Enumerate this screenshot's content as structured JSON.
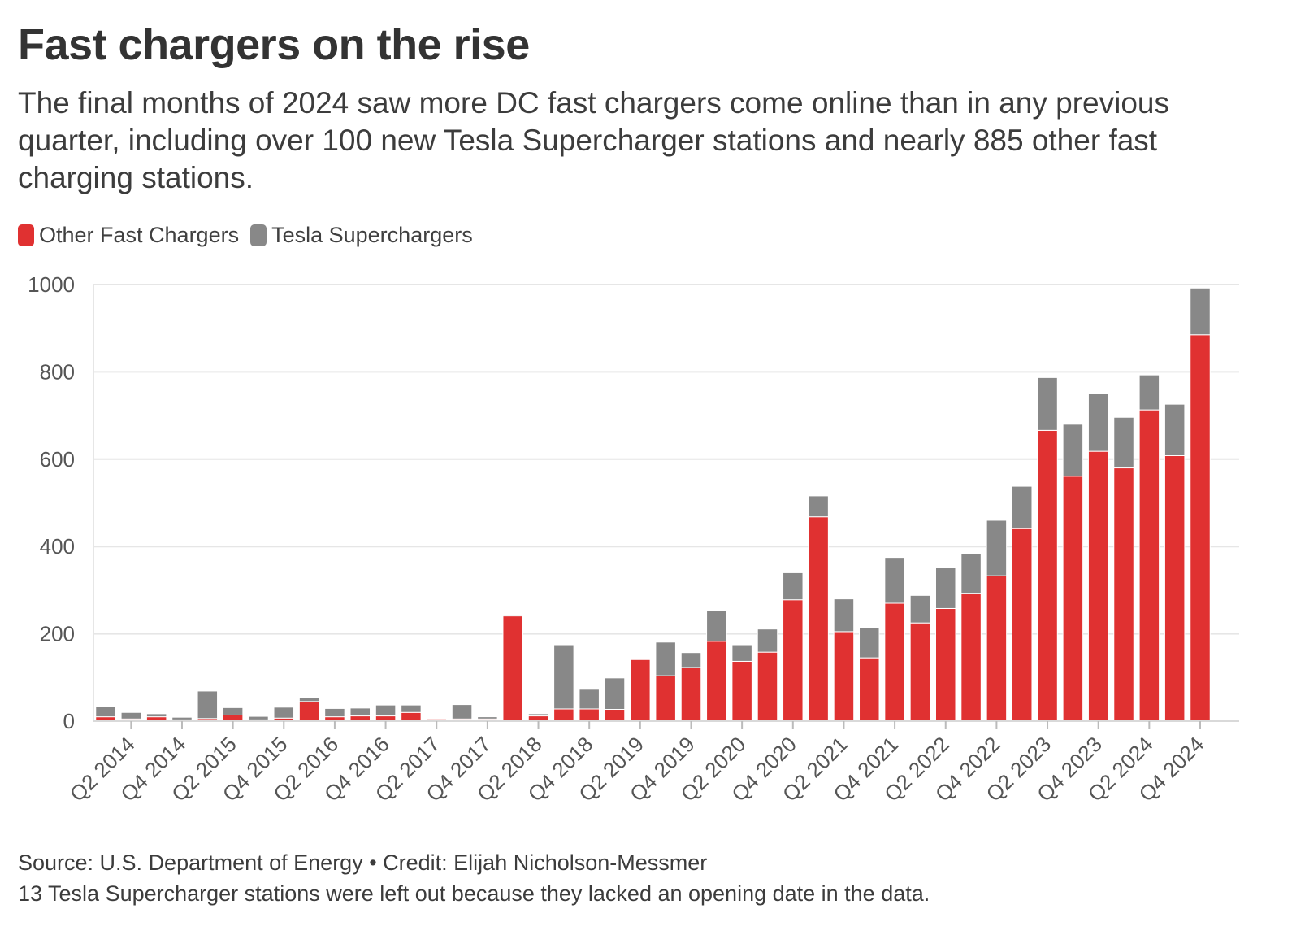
{
  "header": {
    "title": "Fast chargers on the rise",
    "subtitle": "The final months of 2024 saw more DC fast chargers come online than in any previous quarter, including over 100 new Tesla Supercharger stations and nearly 885 other fast charging stations."
  },
  "legend": {
    "items": [
      {
        "label": "Other Fast Chargers",
        "color": "#e03131"
      },
      {
        "label": "Tesla Superchargers",
        "color": "#888888"
      }
    ]
  },
  "footer": {
    "source": "Source: U.S. Department of Energy • Credit: Elijah Nicholson-Messmer",
    "note": "13 Tesla Supercharger stations were left out because they lacked an opening date in the data."
  },
  "chart_data": {
    "type": "bar",
    "stacked": true,
    "title": "Fast chargers on the rise",
    "xlabel": "",
    "ylabel": "",
    "ylim": [
      0,
      1000
    ],
    "yticks": [
      0,
      200,
      400,
      600,
      800,
      1000
    ],
    "grid": true,
    "legend_position": "top-left",
    "categories": [
      "Q1 2014",
      "Q2 2014",
      "Q3 2014",
      "Q4 2014",
      "Q1 2015",
      "Q2 2015",
      "Q3 2015",
      "Q4 2015",
      "Q1 2016",
      "Q2 2016",
      "Q3 2016",
      "Q4 2016",
      "Q1 2017",
      "Q2 2017",
      "Q3 2017",
      "Q4 2017",
      "Q1 2018",
      "Q2 2018",
      "Q3 2018",
      "Q4 2018",
      "Q1 2019",
      "Q2 2019",
      "Q3 2019",
      "Q4 2019",
      "Q1 2020",
      "Q2 2020",
      "Q3 2020",
      "Q4 2020",
      "Q1 2021",
      "Q2 2021",
      "Q3 2021",
      "Q4 2021",
      "Q1 2022",
      "Q2 2022",
      "Q3 2022",
      "Q4 2022",
      "Q1 2023",
      "Q2 2023",
      "Q3 2023",
      "Q4 2023",
      "Q1 2024",
      "Q2 2024",
      "Q3 2024",
      "Q4 2024"
    ],
    "xtick_labels": [
      "Q2 2014",
      "Q4 2014",
      "Q2 2015",
      "Q4 2015",
      "Q2 2016",
      "Q4 2016",
      "Q2 2017",
      "Q4 2017",
      "Q2 2018",
      "Q4 2018",
      "Q2 2019",
      "Q4 2019",
      "Q2 2020",
      "Q4 2020",
      "Q2 2021",
      "Q4 2021",
      "Q2 2022",
      "Q4 2022",
      "Q2 2023",
      "Q4 2023",
      "Q2 2024",
      "Q4 2024"
    ],
    "series": [
      {
        "name": "Other Fast Chargers",
        "color": "#e03131",
        "values": [
          10,
          5,
          10,
          3,
          6,
          14,
          3,
          7,
          45,
          10,
          12,
          12,
          20,
          5,
          5,
          5,
          241,
          12,
          28,
          28,
          27,
          141,
          104,
          123,
          183,
          137,
          158,
          278,
          468,
          205,
          145,
          270,
          225,
          258,
          293,
          333,
          441,
          666,
          561,
          618,
          580,
          713,
          608,
          885
        ]
      },
      {
        "name": "Tesla Superchargers",
        "color": "#888888",
        "values": [
          23,
          15,
          7,
          6,
          63,
          17,
          8,
          25,
          9,
          19,
          18,
          25,
          17,
          0,
          33,
          5,
          3,
          5,
          147,
          45,
          72,
          0,
          77,
          34,
          70,
          38,
          53,
          62,
          48,
          75,
          70,
          105,
          63,
          93,
          90,
          127,
          97,
          121,
          119,
          133,
          116,
          80,
          118,
          107
        ]
      }
    ]
  }
}
